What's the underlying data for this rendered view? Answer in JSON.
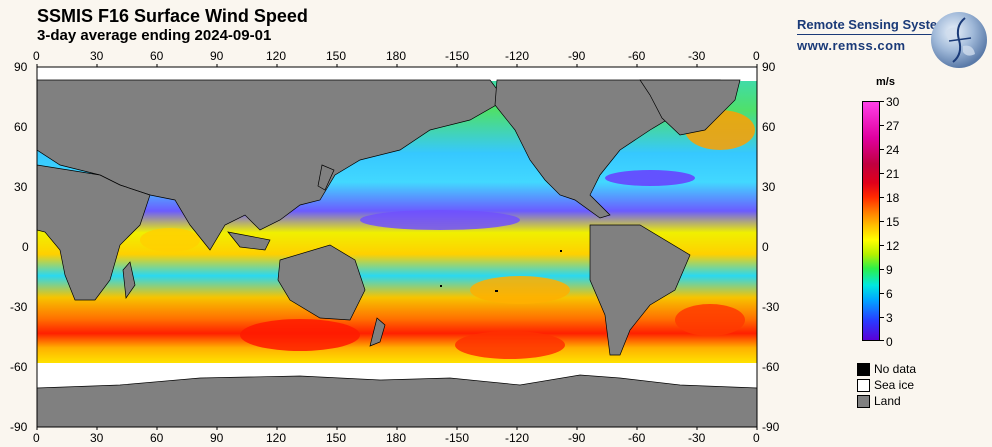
{
  "header": {
    "title": "SSMIS F16 Surface Wind Speed",
    "subtitle": "3-day average ending 2024-09-01"
  },
  "brand": {
    "org": "Remote Sensing Systems",
    "url": "www.remss.com",
    "logo_icon": "globe-logo-icon"
  },
  "map": {
    "lon_ticks": [
      "0",
      "30",
      "60",
      "90",
      "120",
      "150",
      "180",
      "-150",
      "-120",
      "-90",
      "-60",
      "-30",
      "0"
    ],
    "lat_ticks": [
      "90",
      "60",
      "30",
      "0",
      "-30",
      "-60",
      "-90"
    ],
    "colors": {
      "land": "#808080",
      "sea_ice": "#ffffff",
      "no_data": "#000000"
    }
  },
  "colorbar": {
    "unit": "m/s",
    "min": 0,
    "max": 30,
    "labels": [
      "30",
      "27",
      "24",
      "21",
      "18",
      "15",
      "12",
      "9",
      "6",
      "3",
      "0"
    ]
  },
  "legend": {
    "items": [
      {
        "label": "No data",
        "color": "#000000"
      },
      {
        "label": "Sea ice",
        "color": "#ffffff"
      },
      {
        "label": "Land",
        "color": "#808080"
      }
    ]
  }
}
